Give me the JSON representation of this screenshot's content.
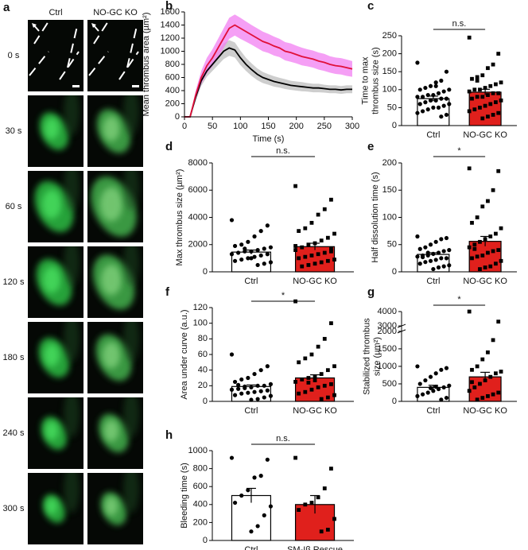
{
  "image_panel": {
    "panel": "a",
    "columns": [
      "Ctrl",
      "NO-GC KO"
    ],
    "rows": [
      "0 s",
      "30 s",
      "60 s",
      "120 s",
      "180 s",
      "240 s",
      "300 s"
    ]
  },
  "chart_data": [
    {
      "panel": "b",
      "type": "line",
      "ylabel": "Mean thrombus area (µm²)",
      "xlabel": "Time (s)",
      "x": [
        0,
        10,
        20,
        30,
        40,
        50,
        60,
        70,
        80,
        90,
        100,
        110,
        120,
        130,
        140,
        150,
        160,
        170,
        180,
        190,
        200,
        210,
        220,
        230,
        240,
        250,
        260,
        270,
        280,
        290,
        300
      ],
      "xlim": [
        0,
        300
      ],
      "xticks": [
        0,
        50,
        100,
        150,
        200,
        250,
        300
      ],
      "ylim": [
        0,
        1600
      ],
      "yticks": [
        0,
        200,
        400,
        600,
        800,
        1000,
        1200,
        1400,
        1600
      ],
      "series": [
        {
          "color": "#000000",
          "band_color": "#bdbdbd",
          "values": [
            0,
            0,
            300,
            550,
            700,
            800,
            900,
            1000,
            1050,
            1020,
            900,
            800,
            720,
            650,
            600,
            570,
            540,
            520,
            500,
            480,
            470,
            460,
            450,
            440,
            440,
            430,
            420,
            420,
            410,
            420,
            420
          ],
          "error": [
            0,
            0,
            60,
            80,
            90,
            100,
            110,
            120,
            120,
            115,
            110,
            100,
            95,
            90,
            85,
            80,
            80,
            75,
            75,
            70,
            70,
            70,
            65,
            65,
            65,
            60,
            60,
            60,
            60,
            60,
            60
          ]
        },
        {
          "color": "#e0103a",
          "band_color": "#f27ff2",
          "values": [
            0,
            0,
            330,
            600,
            780,
            900,
            1050,
            1200,
            1350,
            1400,
            1350,
            1300,
            1250,
            1200,
            1150,
            1120,
            1080,
            1050,
            1000,
            980,
            950,
            920,
            900,
            880,
            850,
            830,
            800,
            780,
            770,
            750,
            730
          ],
          "error": [
            0,
            0,
            70,
            100,
            120,
            130,
            140,
            150,
            160,
            160,
            160,
            155,
            150,
            150,
            150,
            145,
            145,
            140,
            140,
            140,
            135,
            135,
            130,
            130,
            130,
            130,
            125,
            125,
            125,
            125,
            120
          ]
        }
      ]
    },
    {
      "panel": "c",
      "type": "bar",
      "ylabel": [
        "Time to max",
        "thrombus size (s)"
      ],
      "categories": [
        "Ctrl",
        "NO-GC KO"
      ],
      "colors": [
        "#ffffff",
        "#e0201c"
      ],
      "values": [
        75,
        93
      ],
      "errors": [
        7,
        8
      ],
      "significance": "n.s.",
      "ylim": [
        0,
        250
      ],
      "yticks": [
        0,
        50,
        100,
        150,
        200,
        250
      ],
      "points": [
        [
          175,
          150,
          125,
          120,
          110,
          105,
          100,
          100,
          95,
          90,
          85,
          85,
          80,
          80,
          75,
          75,
          70,
          70,
          65,
          60,
          60,
          55,
          50,
          50,
          45,
          40,
          35,
          30,
          25,
          110
        ],
        [
          245,
          200,
          170,
          160,
          140,
          135,
          130,
          120,
          115,
          110,
          105,
          100,
          100,
          95,
          90,
          90,
          85,
          80,
          80,
          75,
          70,
          65,
          60,
          55,
          50,
          45,
          40,
          35,
          30,
          25,
          20,
          125
        ]
      ]
    },
    {
      "panel": "d",
      "type": "bar",
      "ylabel": [
        "Max thrombus size (µm²)"
      ],
      "categories": [
        "Ctrl",
        "NO-GC KO"
      ],
      "colors": [
        "#ffffff",
        "#e0201c"
      ],
      "values": [
        1450,
        1850
      ],
      "errors": [
        150,
        250
      ],
      "significance": "n.s.",
      "ylim": [
        0,
        8000
      ],
      "yticks": [
        0,
        2000,
        4000,
        6000,
        8000
      ],
      "points": [
        [
          3800,
          3400,
          3000,
          2600,
          2200,
          2000,
          1900,
          1800,
          1700,
          1600,
          1500,
          1500,
          1400,
          1300,
          1300,
          1200,
          1100,
          1000,
          900,
          800,
          700,
          600,
          500,
          1000,
          1700
        ],
        [
          6300,
          5300,
          4600,
          4200,
          3600,
          3200,
          3000,
          2800,
          2500,
          2300,
          2100,
          2000,
          1800,
          1600,
          1500,
          1400,
          1300,
          1200,
          1100,
          1000,
          900,
          800,
          700,
          600,
          500,
          400,
          1900,
          1700
        ]
      ]
    },
    {
      "panel": "e",
      "type": "bar",
      "ylabel": [
        "Half dissolution time (s)"
      ],
      "categories": [
        "Ctrl",
        "NO-GC KO"
      ],
      "colors": [
        "#ffffff",
        "#e0201c"
      ],
      "values": [
        32,
        56
      ],
      "errors": [
        3,
        9
      ],
      "significance": "*",
      "ylim": [
        0,
        200
      ],
      "yticks": [
        0,
        50,
        100,
        150,
        200
      ],
      "points": [
        [
          65,
          62,
          60,
          55,
          50,
          45,
          42,
          40,
          38,
          35,
          33,
          30,
          30,
          28,
          25,
          25,
          22,
          20,
          18,
          15,
          12,
          10,
          8,
          5,
          35,
          27
        ],
        [
          190,
          185,
          150,
          130,
          120,
          100,
          90,
          80,
          70,
          65,
          60,
          55,
          50,
          45,
          40,
          38,
          35,
          30,
          28,
          25,
          20,
          15,
          10,
          8,
          5,
          42
        ]
      ]
    },
    {
      "panel": "f",
      "type": "bar",
      "ylabel": [
        "Area under curve (a.u.)"
      ],
      "categories": [
        "Ctrl",
        "NO-GC KO"
      ],
      "colors": [
        "#ffffff",
        "#e0201c"
      ],
      "values": [
        19,
        30
      ],
      "errors": [
        2,
        4
      ],
      "significance": "*",
      "ylim": [
        0,
        120
      ],
      "yticks": [
        0,
        20,
        40,
        60,
        80,
        100,
        120
      ],
      "points": [
        [
          60,
          45,
          40,
          35,
          30,
          28,
          25,
          22,
          20,
          20,
          18,
          17,
          16,
          15,
          14,
          13,
          12,
          11,
          10,
          8,
          7,
          5,
          3,
          2,
          19,
          21
        ],
        [
          128,
          100,
          80,
          70,
          60,
          55,
          50,
          45,
          40,
          35,
          32,
          30,
          28,
          25,
          22,
          20,
          18,
          15,
          12,
          10,
          8,
          5,
          3,
          27,
          24
        ]
      ]
    },
    {
      "panel": "g",
      "type": "bar",
      "ylabel": [
        "Stabilized thrombus",
        "size (µm²)"
      ],
      "categories": [
        "Ctrl",
        "NO-GC KO"
      ],
      "colors": [
        "#ffffff",
        "#e0201c"
      ],
      "values": [
        400,
        700
      ],
      "errors": [
        60,
        130
      ],
      "significance": "*",
      "ylim": [
        0,
        2000
      ],
      "yticks": [
        0,
        500,
        1000,
        1500,
        2000
      ],
      "ylim_upper": [
        3000,
        4000
      ],
      "yticks_upper": [
        3000,
        4000
      ],
      "points": [
        [
          1000,
          950,
          900,
          800,
          700,
          600,
          500,
          450,
          400,
          350,
          300,
          250,
          200,
          150,
          100,
          50,
          420,
          380
        ],
        [
          4000,
          3300,
          1750,
          1400,
          1200,
          1000,
          900,
          850,
          800,
          700,
          600,
          500,
          400,
          300,
          250,
          200,
          150,
          100,
          50,
          550
        ]
      ]
    },
    {
      "panel": "h",
      "type": "bar",
      "ylabel": [
        "Bleeding time (s)"
      ],
      "categories": [
        "Ctrl",
        "SM-Iβ Rescue"
      ],
      "colors": [
        "#ffffff",
        "#e0201c"
      ],
      "values": [
        500,
        400
      ],
      "errors": [
        80,
        100
      ],
      "significance": "n.s.",
      "ylim": [
        0,
        1000
      ],
      "yticks": [
        0,
        200,
        400,
        600,
        800,
        1000
      ],
      "points": [
        [
          920,
          900,
          720,
          700,
          560,
          500,
          420,
          380,
          280,
          160,
          100
        ],
        [
          920,
          800,
          580,
          480,
          420,
          400,
          340,
          240,
          120,
          100
        ]
      ]
    }
  ]
}
